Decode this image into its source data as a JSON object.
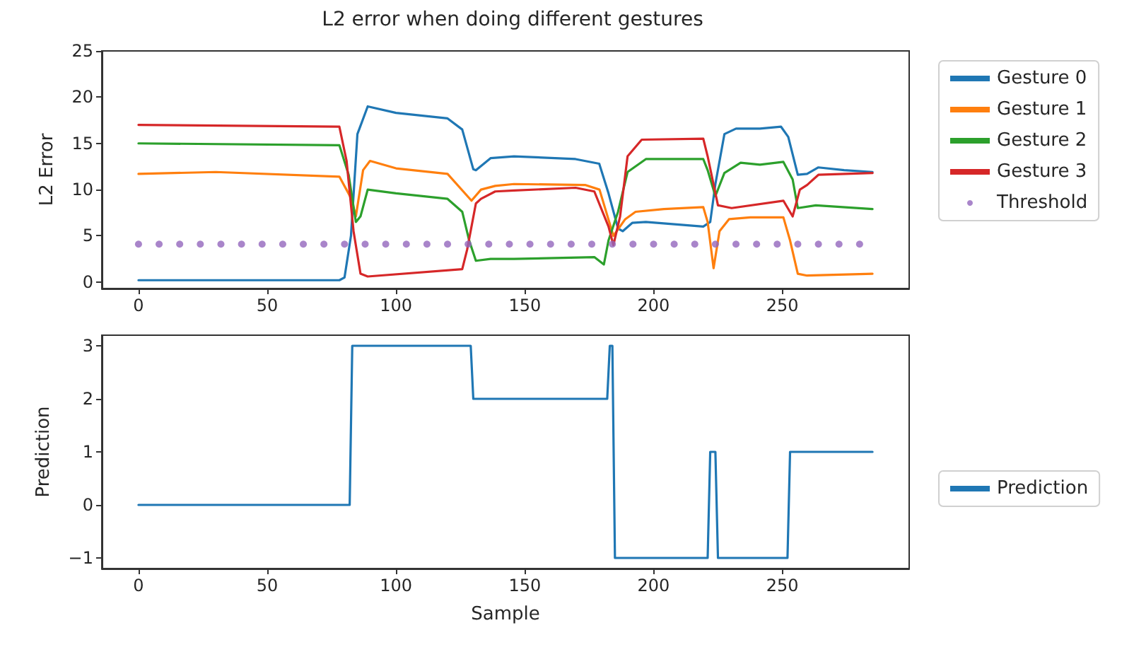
{
  "chart_data": [
    {
      "type": "line",
      "title": "L2 error when doing different gestures",
      "ylabel": "L2 Error",
      "xlim": [
        -14.25,
        299.25
      ],
      "xticks": [
        0,
        50,
        100,
        150,
        200,
        250
      ],
      "ylim": [
        -0.7,
        25
      ],
      "yticks": [
        0,
        5,
        10,
        15,
        20,
        25
      ],
      "legend": "top right",
      "series": [
        {
          "name": "Gesture 0",
          "color": "#1f77b4",
          "x": [
            0,
            30,
            78,
            80,
            82.5,
            85,
            89,
            100,
            120,
            125.7,
            130,
            131,
            136.7,
            145.8,
            169.7,
            178.9,
            182.5,
            186.2,
            188,
            191.7,
            197,
            219.3,
            222,
            224,
            227.5,
            232,
            241.3,
            249.5,
            252.3,
            256,
            259.6,
            264,
            274,
            285
          ],
          "values": [
            0.2,
            0.2,
            0.2,
            0.5,
            5,
            16,
            19,
            18.3,
            17.7,
            16.5,
            12.2,
            12.1,
            13.4,
            13.6,
            13.3,
            12.8,
            9.6,
            5.8,
            5.5,
            6.4,
            6.5,
            6,
            6.5,
            10.6,
            16,
            16.6,
            16.6,
            16.8,
            15.7,
            11.6,
            11.7,
            12.4,
            12.1,
            11.9
          ]
        },
        {
          "name": "Gesture 1",
          "color": "#ff7f0e",
          "x": [
            0,
            30,
            78,
            82.5,
            84.4,
            87.2,
            89.9,
            100,
            120,
            129.3,
            133,
            138.5,
            145.8,
            173.4,
            179,
            184.4,
            189,
            193,
            204,
            219.3,
            221,
            223.3,
            225.6,
            229.3,
            237.6,
            250.4,
            253,
            256,
            259.6,
            285
          ],
          "values": [
            11.7,
            11.9,
            11.4,
            9.1,
            7.1,
            12.1,
            13.1,
            12.3,
            11.7,
            8.8,
            10,
            10.4,
            10.6,
            10.5,
            10,
            5,
            6.8,
            7.6,
            7.9,
            8.1,
            6.5,
            1.5,
            5.5,
            6.8,
            7,
            7,
            4.5,
            0.9,
            0.7,
            0.9
          ]
        },
        {
          "name": "Gesture 2",
          "color": "#2ca02c",
          "x": [
            0,
            78,
            81.6,
            84.4,
            86.2,
            89,
            100,
            120,
            125.7,
            128.4,
            131,
            136.7,
            145.8,
            177,
            180.7,
            182.5,
            186.2,
            189.9,
            197,
            219.3,
            221,
            224,
            227.5,
            233.8,
            241.3,
            250.4,
            254,
            256,
            263,
            285
          ],
          "values": [
            15,
            14.8,
            11.6,
            6.5,
            7.1,
            10,
            9.6,
            9,
            7.6,
            4.5,
            2.3,
            2.5,
            2.5,
            2.7,
            1.9,
            4.5,
            7.6,
            11.9,
            13.3,
            13.3,
            12.1,
            9.3,
            11.8,
            12.9,
            12.7,
            13,
            11.1,
            8,
            8.3,
            7.9
          ]
        },
        {
          "name": "Gesture 3",
          "color": "#d62728",
          "x": [
            0,
            78,
            80.8,
            83.5,
            86.2,
            89,
            125.7,
            127.6,
            131,
            133,
            138.5,
            145.8,
            169.7,
            177,
            182.5,
            184.4,
            187,
            189.9,
            195.4,
            219.3,
            221,
            225,
            230.3,
            250.4,
            254,
            256.8,
            259.6,
            264,
            285
          ],
          "values": [
            17,
            16.8,
            13.1,
            5.5,
            0.9,
            0.6,
            1.4,
            3.5,
            8.5,
            9,
            9.8,
            9.9,
            10.2,
            9.8,
            6,
            4,
            7.1,
            13.6,
            15.4,
            15.5,
            13.6,
            8.3,
            8,
            8.8,
            7.1,
            10,
            10.5,
            11.6,
            11.8
          ]
        },
        {
          "name": "Threshold",
          "type": "scatter",
          "marker": "circle",
          "color": "#9467bd",
          "x": [
            0,
            8,
            16,
            24,
            32,
            40,
            48,
            56,
            64,
            72,
            80,
            88,
            96,
            104,
            112,
            120,
            128,
            136,
            144,
            152,
            160,
            168,
            176,
            184,
            192,
            200,
            208,
            216,
            224,
            232,
            240,
            248,
            256,
            264,
            272,
            280
          ],
          "values": [
            4.1,
            4.1,
            4.1,
            4.1,
            4.1,
            4.1,
            4.1,
            4.1,
            4.1,
            4.1,
            4.1,
            4.1,
            4.1,
            4.1,
            4.1,
            4.1,
            4.1,
            4.1,
            4.1,
            4.1,
            4.1,
            4.1,
            4.1,
            4.1,
            4.1,
            4.1,
            4.1,
            4.1,
            4.1,
            4.1,
            4.1,
            4.1,
            4.1,
            4.1,
            4.1,
            4.1
          ]
        }
      ]
    },
    {
      "type": "line",
      "xlabel": "Sample",
      "ylabel": "Prediction",
      "xlim": [
        -14.25,
        299.25
      ],
      "xticks": [
        0,
        50,
        100,
        150,
        200,
        250
      ],
      "ylim": [
        -1.2,
        3.2
      ],
      "yticks": [
        {
          "value": -1,
          "label": "−1"
        },
        0,
        1,
        2,
        3
      ],
      "legend": "right",
      "series": [
        {
          "name": "Prediction",
          "color": "#1f77b4",
          "x": [
            0,
            82,
            83,
            129,
            130,
            182,
            183,
            184,
            185,
            221,
            222,
            224,
            225,
            252,
            253,
            285
          ],
          "values": [
            0,
            0,
            3,
            3,
            2,
            2,
            3,
            3,
            -1,
            -1,
            1,
            1,
            -1,
            -1,
            1,
            1
          ]
        }
      ]
    }
  ]
}
